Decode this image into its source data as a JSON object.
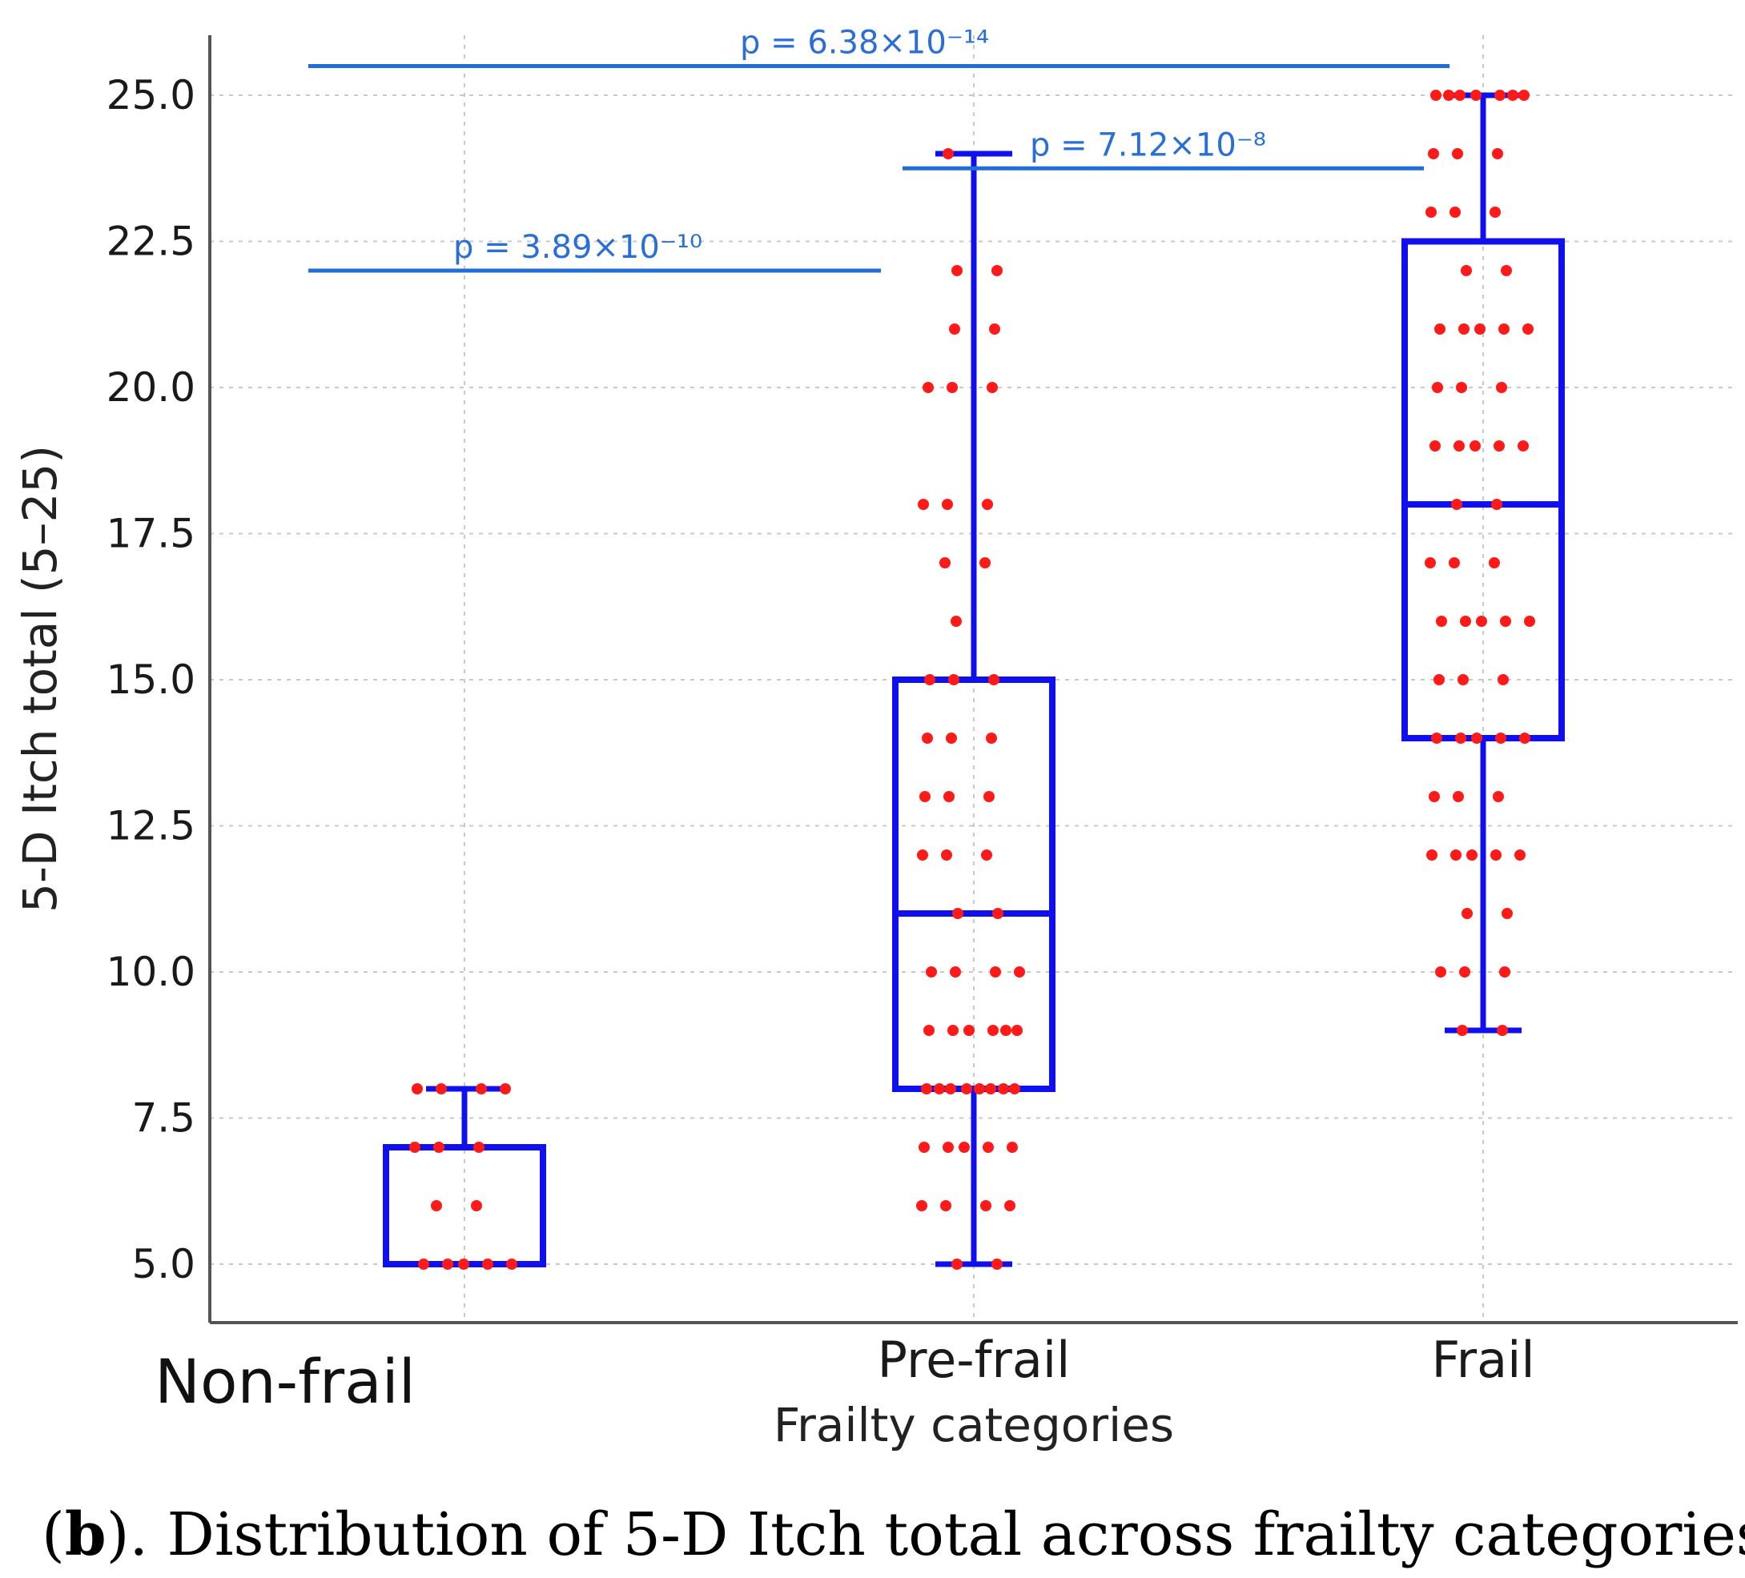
{
  "chart_data": {
    "type": "box",
    "categories": [
      "Non-frail",
      "Pre-frail",
      "Frail"
    ],
    "xlabel": "Frailty categories",
    "ylabel": "5-D Itch total (5–25)",
    "ylim": [
      4.0,
      26.0
    ],
    "yticks": [
      5.0,
      7.5,
      10.0,
      12.5,
      15.0,
      17.5,
      20.0,
      22.5,
      25.0
    ],
    "ytick_labels": [
      "5.0",
      "7.5",
      "10.0",
      "12.5",
      "15.0",
      "17.5",
      "20.0",
      "22.5",
      "25.0"
    ],
    "grid": true,
    "box_color": "#1010ee",
    "point_color": "#ff1a1a",
    "bracket_color": "#1f6fd6",
    "boxes": [
      {
        "category": "Non-frail",
        "whisker_low": 5,
        "q1": 5,
        "median": 5,
        "q3": 7,
        "whisker_high": 8
      },
      {
        "category": "Pre-frail",
        "whisker_low": 5,
        "q1": 8,
        "median": 11,
        "q3": 15,
        "whisker_high": 24
      },
      {
        "category": "Frail",
        "whisker_low": 9,
        "q1": 14,
        "median": 18,
        "q3": 22.5,
        "whisker_high": 25
      }
    ],
    "points": [
      {
        "category": "Non-frail",
        "values": [
          8,
          8,
          8,
          8,
          7,
          7,
          7,
          6,
          6,
          5,
          5,
          5,
          5,
          5
        ]
      },
      {
        "category": "Pre-frail",
        "values": [
          24,
          22,
          22,
          21,
          21,
          20,
          20,
          20,
          18,
          18,
          18,
          17,
          17,
          16,
          15,
          15,
          15,
          14,
          14,
          14,
          13,
          13,
          13,
          12,
          12,
          12,
          11,
          11,
          10,
          10,
          10,
          10,
          9,
          9,
          9,
          9,
          9,
          9,
          8,
          8,
          8,
          8,
          8,
          8,
          8,
          8,
          7,
          7,
          7,
          7,
          7,
          6,
          6,
          6,
          6,
          5,
          5
        ]
      },
      {
        "category": "Frail",
        "values": [
          25,
          25,
          25,
          25,
          25,
          25,
          25,
          24,
          24,
          24,
          23,
          23,
          23,
          22,
          22,
          21,
          21,
          21,
          21,
          21,
          20,
          20,
          20,
          19,
          19,
          19,
          19,
          19,
          18,
          18,
          17,
          17,
          17,
          16,
          16,
          16,
          16,
          16,
          15,
          15,
          15,
          14,
          14,
          14,
          14,
          14,
          13,
          13,
          13,
          12,
          12,
          12,
          12,
          12,
          11,
          11,
          10,
          10,
          10,
          9,
          9
        ]
      }
    ],
    "annotations": [
      {
        "from": "Non-frail",
        "to": "Pre-frail",
        "y": 22.0,
        "label": "p = 3.89×10⁻¹⁰"
      },
      {
        "from": "Pre-frail",
        "to": "Frail",
        "y": 23.75,
        "label": "p = 7.12×10⁻⁸"
      },
      {
        "from": "Non-frail",
        "to": "Frail",
        "y": 25.5,
        "label": "p = 6.38×10⁻¹⁴"
      }
    ]
  },
  "caption": {
    "open": "(",
    "letter": "b",
    "text": "). Distribution of 5-D Itch total across frailty categories"
  }
}
